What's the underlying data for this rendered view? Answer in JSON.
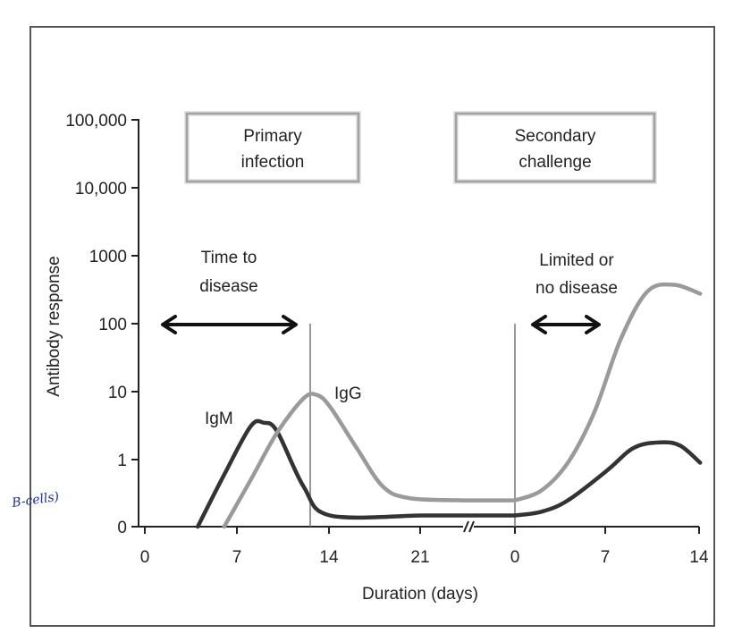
{
  "chart_data": {
    "type": "line",
    "ylabel": "Antibody response",
    "xlabel": "Duration (days)",
    "y_scale": "log",
    "y_ticks": [
      "0",
      "1",
      "10",
      "100",
      "1000",
      "10,000",
      "100,000"
    ],
    "x_ticks": [
      "0",
      "7",
      "14",
      "21",
      "0",
      "7",
      "14"
    ],
    "axis_break": "between 21 and 0",
    "boxes": [
      {
        "id": "primary",
        "line1": "Primary",
        "line2": "infection"
      },
      {
        "id": "secondary",
        "line1": "Secondary",
        "line2": "challenge"
      }
    ],
    "annotations": [
      {
        "id": "time-to-disease",
        "line1": "Time to",
        "line2": "disease"
      },
      {
        "id": "limited-disease",
        "line1": "Limited or",
        "line2": "no disease"
      }
    ],
    "markers": [
      {
        "id": "primary-infection-marker",
        "x_day": 12.5,
        "phase": "primary"
      },
      {
        "id": "secondary-challenge-marker",
        "x_day": 0,
        "phase": "secondary"
      }
    ],
    "series": [
      {
        "name": "IgM",
        "color": "#333333",
        "points": [
          {
            "phase": "primary",
            "x": 4,
            "y": 0
          },
          {
            "phase": "primary",
            "x": 6,
            "y": 0.6
          },
          {
            "phase": "primary",
            "x": 8,
            "y": 3.1
          },
          {
            "phase": "primary",
            "x": 9,
            "y": 3.5
          },
          {
            "phase": "primary",
            "x": 10,
            "y": 2.6
          },
          {
            "phase": "primary",
            "x": 12,
            "y": 0.4
          },
          {
            "phase": "primary",
            "x": 14,
            "y": 0.15
          },
          {
            "phase": "primary",
            "x": 21,
            "y": 0.15
          },
          {
            "phase": "primary",
            "x": 24,
            "y": 0.15
          },
          {
            "phase": "secondary",
            "x": 0,
            "y": 0.15
          },
          {
            "phase": "secondary",
            "x": 2,
            "y": 0.17
          },
          {
            "phase": "secondary",
            "x": 4,
            "y": 0.25
          },
          {
            "phase": "secondary",
            "x": 7,
            "y": 0.7
          },
          {
            "phase": "secondary",
            "x": 9,
            "y": 1.5
          },
          {
            "phase": "secondary",
            "x": 11,
            "y": 1.8
          },
          {
            "phase": "secondary",
            "x": 12.5,
            "y": 1.6
          },
          {
            "phase": "secondary",
            "x": 14,
            "y": 0.9
          }
        ]
      },
      {
        "name": "IgG",
        "color": "#9a9a9a",
        "points": [
          {
            "phase": "primary",
            "x": 6,
            "y": 0
          },
          {
            "phase": "primary",
            "x": 8,
            "y": 0.5
          },
          {
            "phase": "primary",
            "x": 10,
            "y": 2.5
          },
          {
            "phase": "primary",
            "x": 12,
            "y": 8
          },
          {
            "phase": "primary",
            "x": 13,
            "y": 9
          },
          {
            "phase": "primary",
            "x": 14,
            "y": 6
          },
          {
            "phase": "primary",
            "x": 16,
            "y": 1.5
          },
          {
            "phase": "primary",
            "x": 18,
            "y": 0.4
          },
          {
            "phase": "primary",
            "x": 20,
            "y": 0.27
          },
          {
            "phase": "primary",
            "x": 24,
            "y": 0.25
          },
          {
            "phase": "secondary",
            "x": 0,
            "y": 0.25
          },
          {
            "phase": "secondary",
            "x": 2,
            "y": 0.35
          },
          {
            "phase": "secondary",
            "x": 4,
            "y": 0.9
          },
          {
            "phase": "secondary",
            "x": 6,
            "y": 5
          },
          {
            "phase": "secondary",
            "x": 8,
            "y": 60
          },
          {
            "phase": "secondary",
            "x": 10,
            "y": 300
          },
          {
            "phase": "secondary",
            "x": 12,
            "y": 380
          },
          {
            "phase": "secondary",
            "x": 14,
            "y": 280
          }
        ]
      }
    ],
    "handwritten_note": "B-cells)"
  }
}
